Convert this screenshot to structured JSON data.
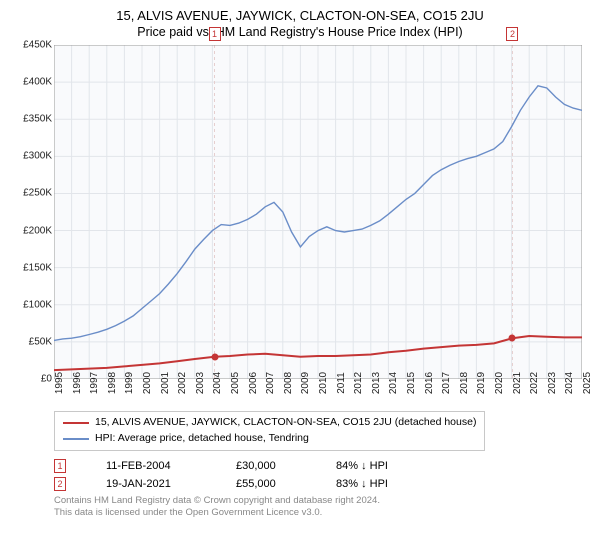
{
  "title": "15, ALVIS AVENUE, JAYWICK, CLACTON-ON-SEA, CO15 2JU",
  "subtitle": "Price paid vs. HM Land Registry's House Price Index (HPI)",
  "chart": {
    "type": "line",
    "background_color": "#ffffff",
    "plot_background": "#f9fafc",
    "grid_color": "#e2e5ea",
    "axis_color": "#000000",
    "tick_font_size": 10,
    "xlim": [
      1995,
      2025
    ],
    "ylim": [
      0,
      450
    ],
    "x_ticks": [
      1995,
      1996,
      1997,
      1998,
      1999,
      2000,
      2001,
      2002,
      2003,
      2004,
      2005,
      2006,
      2007,
      2008,
      2009,
      2010,
      2011,
      2012,
      2013,
      2014,
      2015,
      2016,
      2017,
      2018,
      2019,
      2020,
      2021,
      2022,
      2023,
      2024,
      2025
    ],
    "y_ticks": [
      {
        "v": 0,
        "label": "£0"
      },
      {
        "v": 50,
        "label": "£50K"
      },
      {
        "v": 100,
        "label": "£100K"
      },
      {
        "v": 150,
        "label": "£150K"
      },
      {
        "v": 200,
        "label": "£200K"
      },
      {
        "v": 250,
        "label": "£250K"
      },
      {
        "v": 300,
        "label": "£300K"
      },
      {
        "v": 350,
        "label": "£350K"
      },
      {
        "v": 400,
        "label": "£400K"
      },
      {
        "v": 450,
        "label": "£450K"
      }
    ],
    "series": [
      {
        "name": "property",
        "label": "15, ALVIS AVENUE, JAYWICK, CLACTON-ON-SEA, CO15 2JU (detached house)",
        "color": "#c43535",
        "line_width": 2,
        "points": [
          [
            1995,
            12
          ],
          [
            1996,
            13
          ],
          [
            1997,
            14
          ],
          [
            1998,
            15
          ],
          [
            1999,
            17
          ],
          [
            2000,
            19
          ],
          [
            2001,
            21
          ],
          [
            2002,
            24
          ],
          [
            2003,
            27
          ],
          [
            2004.12,
            30
          ],
          [
            2005,
            31
          ],
          [
            2006,
            33
          ],
          [
            2007,
            34
          ],
          [
            2008,
            32
          ],
          [
            2009,
            30
          ],
          [
            2010,
            31
          ],
          [
            2011,
            31
          ],
          [
            2012,
            32
          ],
          [
            2013,
            33
          ],
          [
            2014,
            36
          ],
          [
            2015,
            38
          ],
          [
            2016,
            41
          ],
          [
            2017,
            43
          ],
          [
            2018,
            45
          ],
          [
            2019,
            46
          ],
          [
            2020,
            48
          ],
          [
            2021.05,
            55
          ],
          [
            2022,
            58
          ],
          [
            2023,
            57
          ],
          [
            2024,
            56
          ],
          [
            2025,
            56
          ]
        ]
      },
      {
        "name": "hpi",
        "label": "HPI: Average price, detached house, Tendring",
        "color": "#6a8dc8",
        "line_width": 1.4,
        "points": [
          [
            1995,
            52
          ],
          [
            1995.5,
            54
          ],
          [
            1996,
            55
          ],
          [
            1996.5,
            57
          ],
          [
            1997,
            60
          ],
          [
            1997.5,
            63
          ],
          [
            1998,
            67
          ],
          [
            1998.5,
            72
          ],
          [
            1999,
            78
          ],
          [
            1999.5,
            85
          ],
          [
            2000,
            95
          ],
          [
            2000.5,
            105
          ],
          [
            2001,
            115
          ],
          [
            2001.5,
            128
          ],
          [
            2002,
            142
          ],
          [
            2002.5,
            158
          ],
          [
            2003,
            175
          ],
          [
            2003.5,
            188
          ],
          [
            2004,
            200
          ],
          [
            2004.5,
            208
          ],
          [
            2005,
            207
          ],
          [
            2005.5,
            210
          ],
          [
            2006,
            215
          ],
          [
            2006.5,
            222
          ],
          [
            2007,
            232
          ],
          [
            2007.5,
            238
          ],
          [
            2008,
            225
          ],
          [
            2008.5,
            198
          ],
          [
            2009,
            178
          ],
          [
            2009.5,
            192
          ],
          [
            2010,
            200
          ],
          [
            2010.5,
            205
          ],
          [
            2011,
            200
          ],
          [
            2011.5,
            198
          ],
          [
            2012,
            200
          ],
          [
            2012.5,
            202
          ],
          [
            2013,
            207
          ],
          [
            2013.5,
            213
          ],
          [
            2014,
            222
          ],
          [
            2014.5,
            232
          ],
          [
            2015,
            242
          ],
          [
            2015.5,
            250
          ],
          [
            2016,
            262
          ],
          [
            2016.5,
            274
          ],
          [
            2017,
            282
          ],
          [
            2017.5,
            288
          ],
          [
            2018,
            293
          ],
          [
            2018.5,
            297
          ],
          [
            2019,
            300
          ],
          [
            2019.5,
            305
          ],
          [
            2020,
            310
          ],
          [
            2020.5,
            320
          ],
          [
            2021,
            340
          ],
          [
            2021.5,
            362
          ],
          [
            2022,
            380
          ],
          [
            2022.5,
            395
          ],
          [
            2023,
            392
          ],
          [
            2023.5,
            380
          ],
          [
            2024,
            370
          ],
          [
            2024.5,
            365
          ],
          [
            2025,
            362
          ]
        ]
      }
    ],
    "event_markers": [
      {
        "n": "1",
        "x": 2004.12,
        "y": 30,
        "color": "#c43535"
      },
      {
        "n": "2",
        "x": 2021.05,
        "y": 55,
        "color": "#c43535"
      }
    ],
    "vline_color": "#e6cfcf"
  },
  "legend": {
    "border_color": "#c8c8c8",
    "items": [
      {
        "color": "#c43535",
        "label": "15, ALVIS AVENUE, JAYWICK, CLACTON-ON-SEA, CO15 2JU (detached house)"
      },
      {
        "color": "#6a8dc8",
        "label": "HPI: Average price, detached house, Tendring"
      }
    ]
  },
  "events": [
    {
      "n": "1",
      "date": "11-FEB-2004",
      "price": "£30,000",
      "diff": "84% ↓ HPI",
      "color": "#c43535"
    },
    {
      "n": "2",
      "date": "19-JAN-2021",
      "price": "£55,000",
      "diff": "83% ↓ HPI",
      "color": "#c43535"
    }
  ],
  "footer": {
    "line1": "Contains HM Land Registry data © Crown copyright and database right 2024.",
    "line2": "This data is licensed under the Open Government Licence v3.0.",
    "color": "#888888"
  }
}
